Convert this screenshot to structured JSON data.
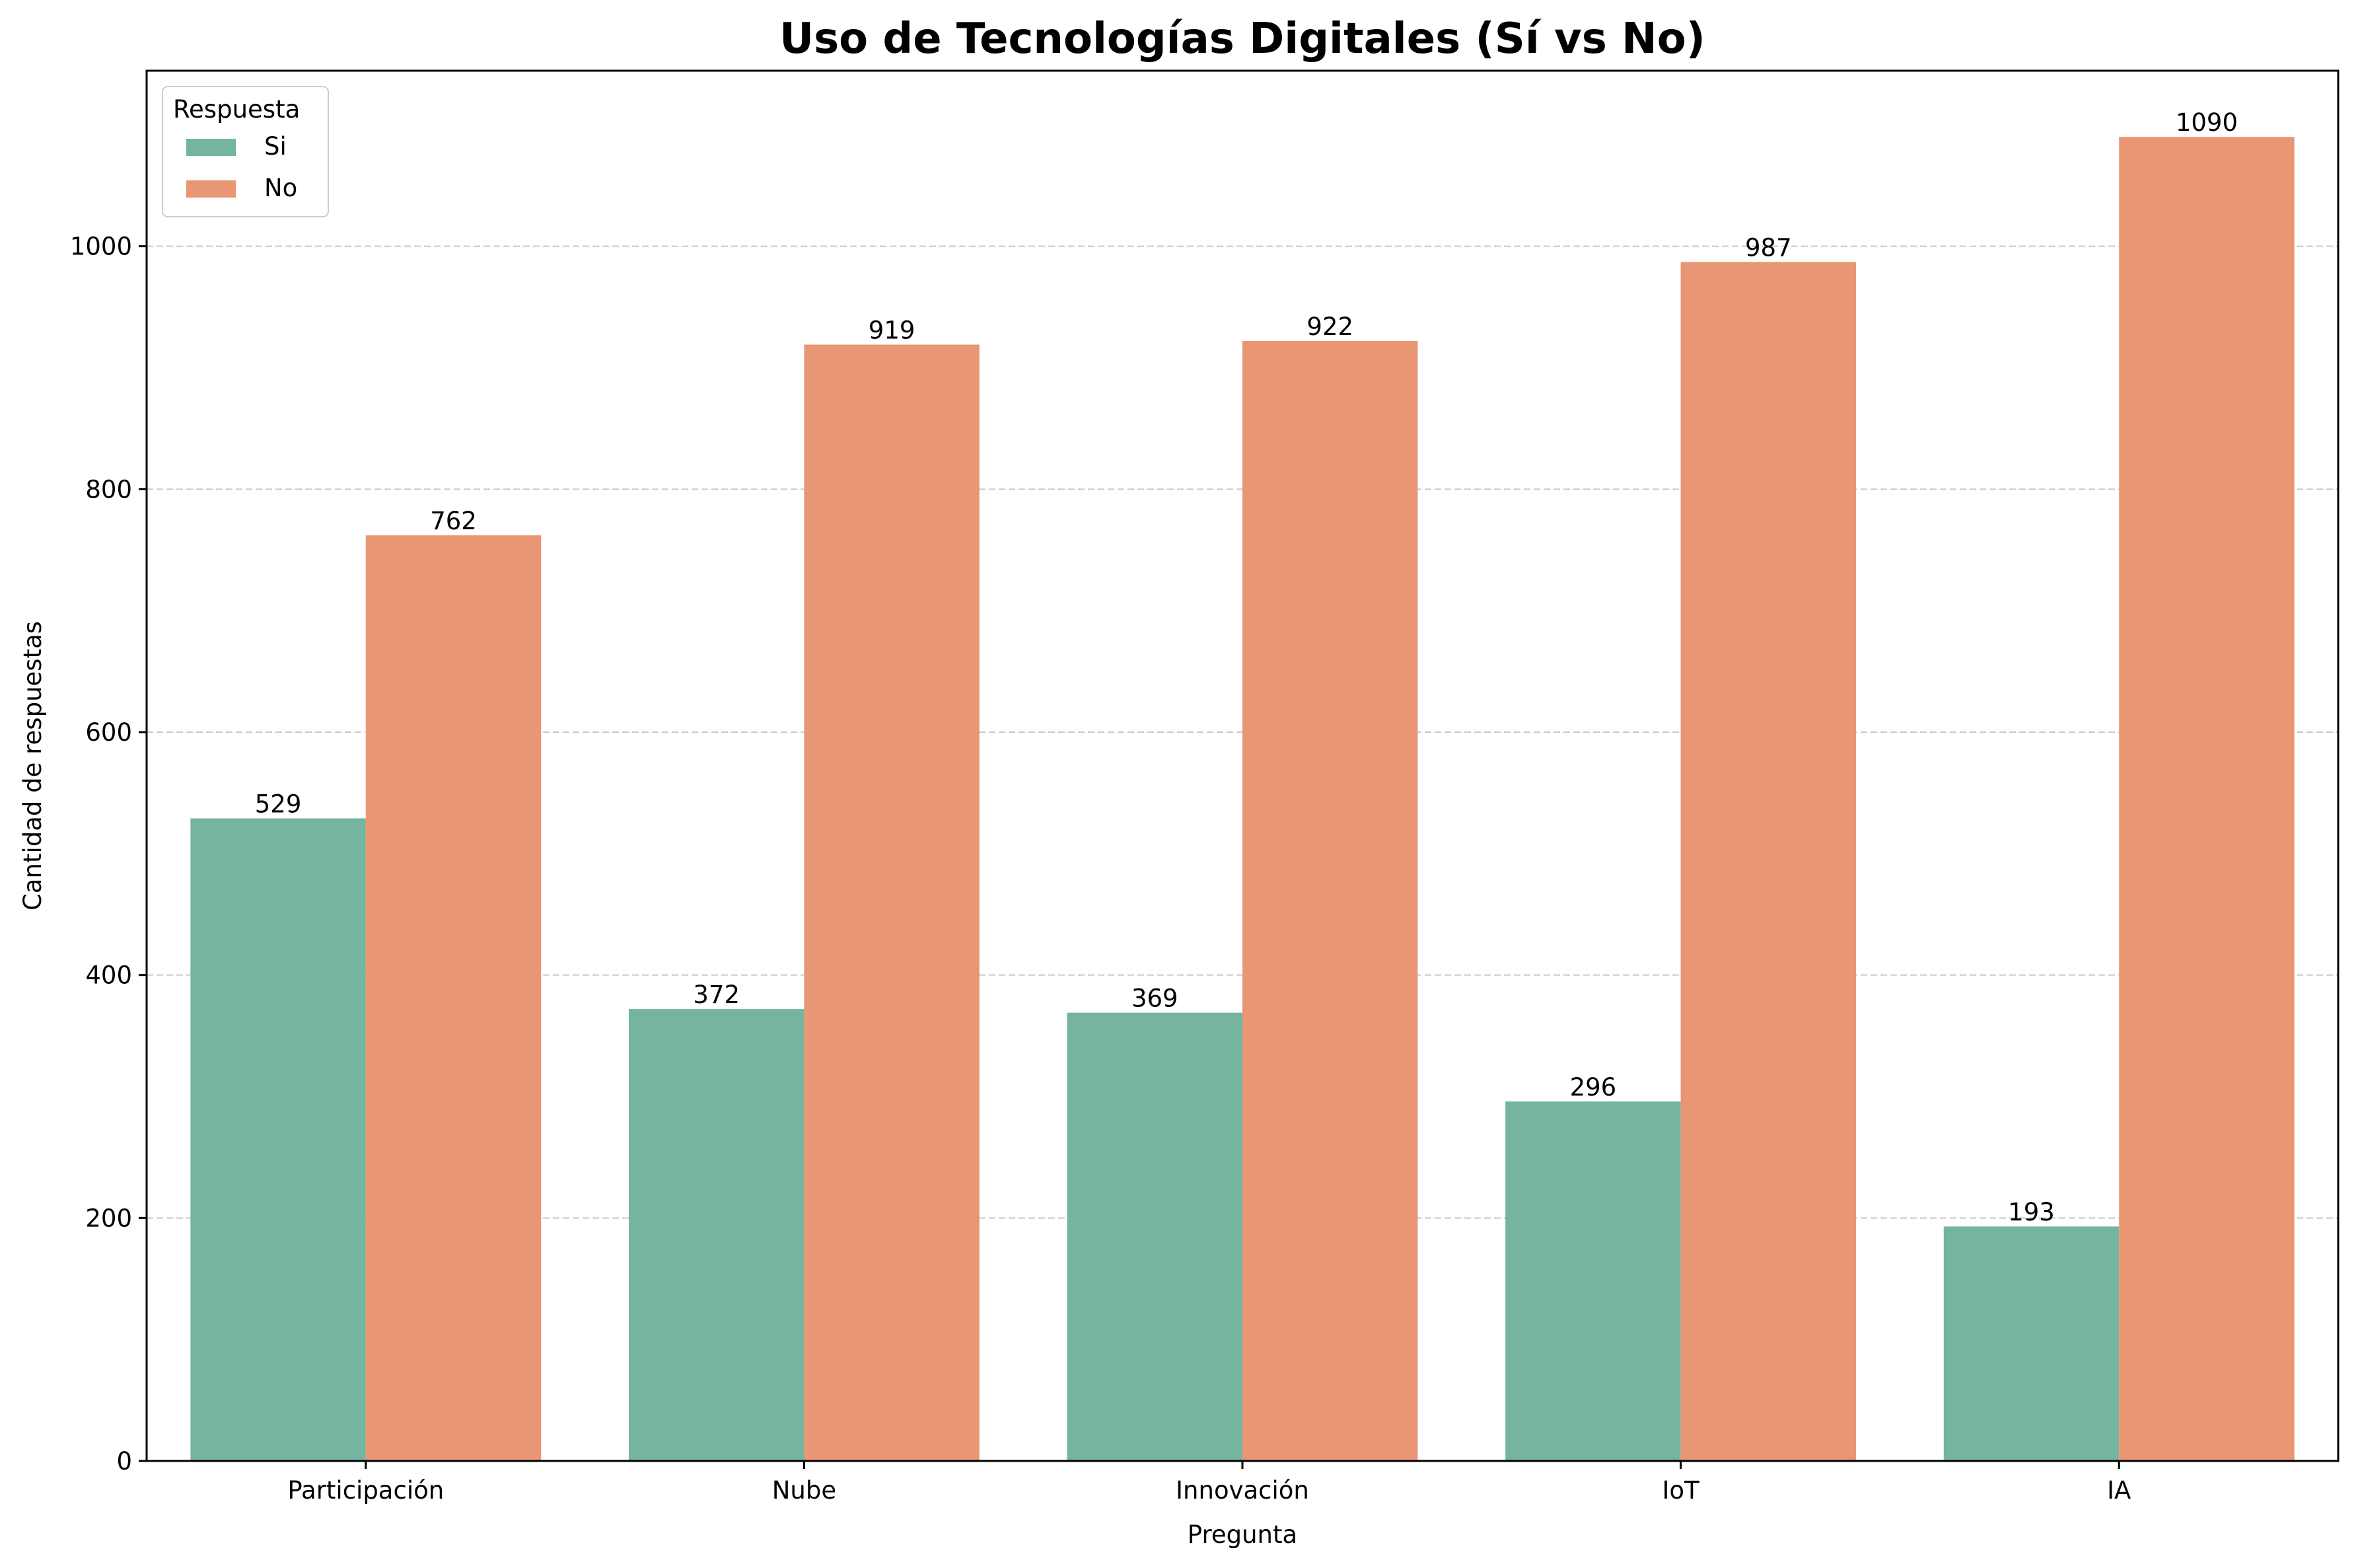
{
  "chart_data": {
    "type": "bar",
    "title": "Uso de Tecnologías Digitales (Sí vs No)",
    "xlabel": "Pregunta",
    "ylabel": "Cantidad de respuestas",
    "categories": [
      "Participación",
      "Nube",
      "Innovación",
      "IoT",
      "IA"
    ],
    "series": [
      {
        "name": "Si",
        "color": "#75b4a0",
        "values": [
          529,
          372,
          369,
          296,
          193
        ]
      },
      {
        "name": "No",
        "color": "#e99674",
        "values": [
          762,
          919,
          922,
          987,
          1090
        ]
      }
    ],
    "ylim": [
      0,
      1144.5
    ],
    "yticks": [
      0,
      200,
      400,
      600,
      800,
      1000
    ],
    "grid": "y-dashed",
    "legend": {
      "title": "Respuesta",
      "placement": "top-left"
    }
  }
}
